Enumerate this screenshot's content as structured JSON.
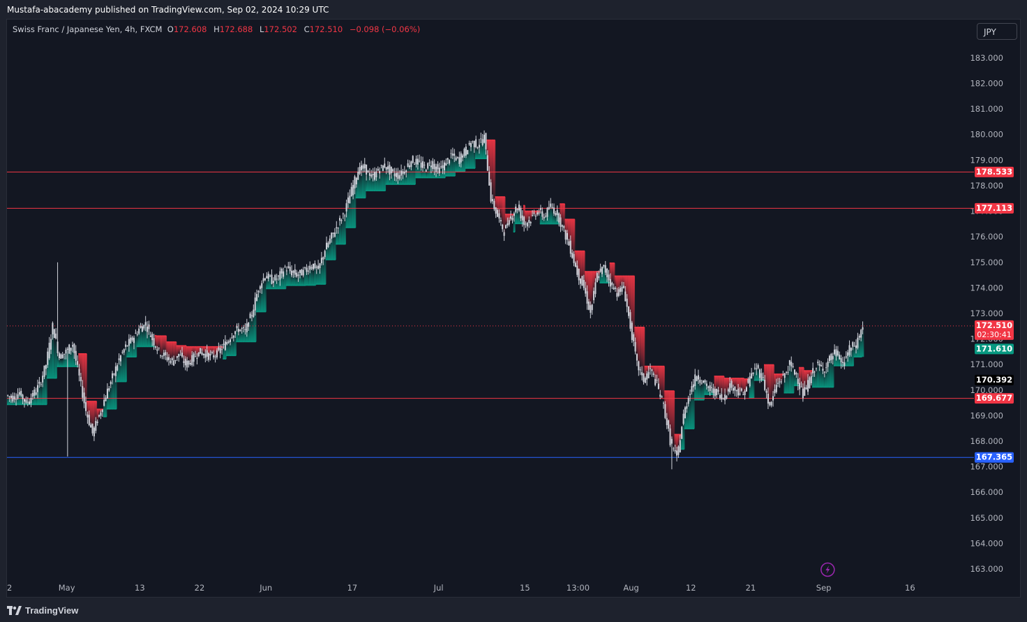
{
  "header": {
    "published_text": "Mustafa-abacademy published on TradingView.com, Sep 02, 2024 10:29 UTC"
  },
  "legend": {
    "symbol": "Swiss Franc / Japanese Yen, 4h, FXCM",
    "open_label": "O",
    "open_value": "172.608",
    "high_label": "H",
    "high_value": "172.688",
    "low_label": "L",
    "low_value": "172.502",
    "close_label": "C",
    "close_value": "172.510",
    "change": "−0.098 (−0.06%)"
  },
  "currency_button": "JPY",
  "footer": {
    "brand": "TradingView"
  },
  "colors": {
    "bg": "#131722",
    "grid": "#1f2330",
    "up": "#089981",
    "down": "#f23645",
    "level_line": "#f23645",
    "support_line": "#2962ff",
    "candle": "#d1d4dc"
  },
  "chart_data": {
    "type": "candlestick",
    "ylim": [
      162.7,
      184.5
    ],
    "y_ticks": [
      "163.000",
      "164.000",
      "165.000",
      "166.000",
      "167.000",
      "168.000",
      "169.000",
      "170.000",
      "171.000",
      "172.000",
      "173.000",
      "174.000",
      "175.000",
      "176.000",
      "177.000",
      "178.000",
      "179.000",
      "180.000",
      "181.000",
      "182.000",
      "183.000"
    ],
    "x_labels": [
      {
        "label": "22",
        "t": 0
      },
      {
        "label": "May",
        "t": 9
      },
      {
        "label": "13",
        "t": 20
      },
      {
        "label": "22",
        "t": 29
      },
      {
        "label": "Jun",
        "t": 39
      },
      {
        "label": "17",
        "t": 52
      },
      {
        "label": "Jul",
        "t": 65
      },
      {
        "label": "15",
        "t": 78
      },
      {
        "label": "13:00",
        "t": 86
      },
      {
        "label": "Aug",
        "t": 94
      },
      {
        "label": "12",
        "t": 103
      },
      {
        "label": "21",
        "t": 112
      },
      {
        "label": "Sep",
        "t": 123
      },
      {
        "label": "16",
        "t": 136
      }
    ],
    "x_range": [
      0,
      145
    ],
    "levels": [
      {
        "value": 178.533,
        "label": "178.533",
        "color": "#f23645"
      },
      {
        "value": 177.113,
        "label": "177.113",
        "color": "#f23645"
      },
      {
        "value": 169.677,
        "label": "169.677",
        "color": "#f23645"
      },
      {
        "value": 167.365,
        "label": "167.365",
        "color": "#2962ff"
      }
    ],
    "price_tags": [
      {
        "value": 172.51,
        "label": "172.510",
        "sublabel": "02:30:41",
        "color": "#f23645"
      },
      {
        "value": 171.61,
        "label": "171.610",
        "color": "#089981"
      },
      {
        "value": 170.392,
        "label": "170.392",
        "color": "#000000"
      }
    ],
    "last_price": 172.51,
    "path": [
      [
        0,
        169.8
      ],
      [
        1,
        169.7
      ],
      [
        2,
        169.9
      ],
      [
        3,
        169.5
      ],
      [
        4,
        169.8
      ],
      [
        5,
        170.2
      ],
      [
        6,
        171.0
      ],
      [
        7,
        172.5
      ],
      [
        8,
        171.3
      ],
      [
        9,
        171.5
      ],
      [
        10,
        171.8
      ],
      [
        11,
        170.5
      ],
      [
        12,
        169.2
      ],
      [
        13,
        168.3
      ],
      [
        14,
        169.0
      ],
      [
        15,
        169.8
      ],
      [
        16,
        170.5
      ],
      [
        17,
        171.2
      ],
      [
        18,
        171.7
      ],
      [
        19,
        172.0
      ],
      [
        20,
        172.4
      ],
      [
        21,
        172.6
      ],
      [
        22,
        172.0
      ],
      [
        23,
        171.5
      ],
      [
        24,
        171.3
      ],
      [
        25,
        171.1
      ],
      [
        26,
        171.4
      ],
      [
        27,
        171.0
      ],
      [
        28,
        171.2
      ],
      [
        29,
        171.5
      ],
      [
        30,
        171.4
      ],
      [
        31,
        171.3
      ],
      [
        32,
        171.5
      ],
      [
        33,
        171.8
      ],
      [
        34,
        172.2
      ],
      [
        35,
        172.4
      ],
      [
        36,
        172.3
      ],
      [
        37,
        173.0
      ],
      [
        38,
        174.0
      ],
      [
        39,
        174.5
      ],
      [
        40,
        174.3
      ],
      [
        41,
        174.4
      ],
      [
        42,
        174.8
      ],
      [
        43,
        174.6
      ],
      [
        44,
        174.5
      ],
      [
        45,
        174.7
      ],
      [
        46,
        174.9
      ],
      [
        47,
        174.7
      ],
      [
        48,
        175.5
      ],
      [
        49,
        176.0
      ],
      [
        50,
        176.5
      ],
      [
        51,
        177.0
      ],
      [
        52,
        177.8
      ],
      [
        53,
        178.6
      ],
      [
        54,
        178.7
      ],
      [
        55,
        178.3
      ],
      [
        56,
        178.6
      ],
      [
        57,
        178.8
      ],
      [
        58,
        178.5
      ],
      [
        59,
        178.4
      ],
      [
        60,
        178.6
      ],
      [
        61,
        179.0
      ],
      [
        62,
        178.9
      ],
      [
        63,
        178.7
      ],
      [
        64,
        178.9
      ],
      [
        65,
        178.6
      ],
      [
        66,
        178.8
      ],
      [
        67,
        179.2
      ],
      [
        68,
        179.0
      ],
      [
        69,
        179.3
      ],
      [
        70,
        179.7
      ],
      [
        71,
        179.6
      ],
      [
        72,
        179.9
      ],
      [
        73,
        177.5
      ],
      [
        74,
        176.8
      ],
      [
        75,
        176.2
      ],
      [
        76,
        176.8
      ],
      [
        77,
        177.2
      ],
      [
        78,
        176.5
      ],
      [
        79,
        176.7
      ],
      [
        80,
        177.0
      ],
      [
        81,
        176.8
      ],
      [
        82,
        177.2
      ],
      [
        83,
        176.9
      ],
      [
        84,
        176.2
      ],
      [
        85,
        175.5
      ],
      [
        86,
        174.6
      ],
      [
        87,
        174.0
      ],
      [
        88,
        173.0
      ],
      [
        89,
        174.5
      ],
      [
        90,
        174.8
      ],
      [
        91,
        174.2
      ],
      [
        92,
        173.8
      ],
      [
        93,
        174.0
      ],
      [
        94,
        172.5
      ],
      [
        95,
        171.0
      ],
      [
        96,
        170.4
      ],
      [
        97,
        170.8
      ],
      [
        98,
        170.2
      ],
      [
        99,
        169.4
      ],
      [
        100,
        168.0
      ],
      [
        101,
        167.3
      ],
      [
        102,
        169.0
      ],
      [
        103,
        170.0
      ],
      [
        104,
        170.6
      ],
      [
        105,
        170.3
      ],
      [
        106,
        170.0
      ],
      [
        107,
        169.9
      ],
      [
        108,
        169.7
      ],
      [
        109,
        170.2
      ],
      [
        110,
        170.0
      ],
      [
        111,
        169.8
      ],
      [
        112,
        170.5
      ],
      [
        113,
        170.9
      ],
      [
        114,
        170.4
      ],
      [
        115,
        169.3
      ],
      [
        116,
        170.2
      ],
      [
        117,
        170.5
      ],
      [
        118,
        171.0
      ],
      [
        119,
        170.6
      ],
      [
        120,
        169.8
      ],
      [
        121,
        170.4
      ],
      [
        122,
        171.0
      ],
      [
        123,
        170.8
      ],
      [
        124,
        171.2
      ],
      [
        125,
        171.5
      ],
      [
        126,
        171.0
      ],
      [
        127,
        171.6
      ],
      [
        128,
        171.8
      ],
      [
        129,
        172.5
      ]
    ]
  }
}
